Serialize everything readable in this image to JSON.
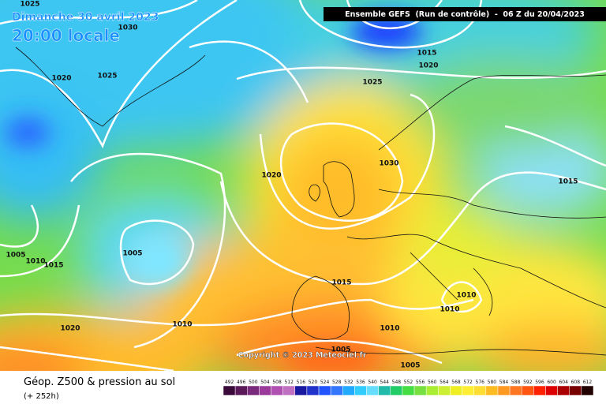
{
  "header": {
    "date": "Dimanche 30 avril 2023",
    "time": "20:00 locale",
    "run": "Ensemble GEFS  (Run de contrôle)  -  06 Z du 20/04/2023"
  },
  "isobar_labels": [
    "1025",
    "1030",
    "1020",
    "1025",
    "1015",
    "1020",
    "1025",
    "1030",
    "1020",
    "1015",
    "1005",
    "1005",
    "1010",
    "1015",
    "1015",
    "1010",
    "1010",
    "1010",
    "1010",
    "1020",
    "1005",
    "1005"
  ],
  "footer": {
    "copyright": "Copyright © 2023 Meteociel.fr",
    "title": "Géop. Z500 & pression au sol",
    "lead": "(+ 252h)"
  },
  "scale": {
    "values": [
      492,
      496,
      500,
      504,
      508,
      512,
      516,
      520,
      524,
      528,
      532,
      536,
      540,
      544,
      548,
      552,
      556,
      560,
      564,
      568,
      572,
      576,
      580,
      584,
      588,
      592,
      596,
      600,
      604,
      608,
      612
    ],
    "colors": [
      "#3a0a3a",
      "#5a1a5a",
      "#7a2a7a",
      "#9a3a9a",
      "#b050b0",
      "#c070c0",
      "#1a1aa0",
      "#2233cc",
      "#2255ff",
      "#3377ff",
      "#22aaff",
      "#33ccff",
      "#66ddff",
      "#22bbaa",
      "#22cc66",
      "#44dd44",
      "#77e040",
      "#aaee33",
      "#ccee33",
      "#eeee22",
      "#ffee33",
      "#ffdd33",
      "#ffbb22",
      "#ff9922",
      "#ff7722",
      "#ff5511",
      "#ff2200",
      "#dd0000",
      "#aa0000",
      "#770000",
      "#220000"
    ]
  }
}
